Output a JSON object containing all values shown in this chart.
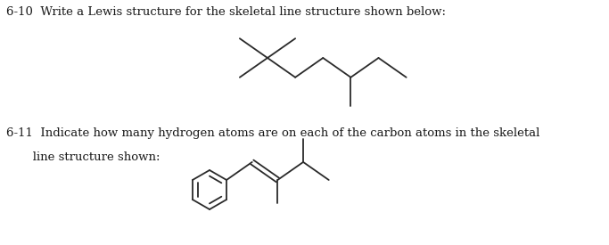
{
  "title_610": "6-10  Write a Lewis structure for the skeletal line structure shown below:",
  "title_611": "6-11  Indicate how many hydrogen atoms are on each of the carbon atoms in the skeletal\n       line structure shown:",
  "bg_color": "#ffffff",
  "text_color": "#1a1a1a",
  "line_color": "#2a2a2a",
  "font_size_title": 9.5,
  "lw": 1.3,
  "fig_width": 6.83,
  "fig_height": 2.75,
  "dpi": 100
}
